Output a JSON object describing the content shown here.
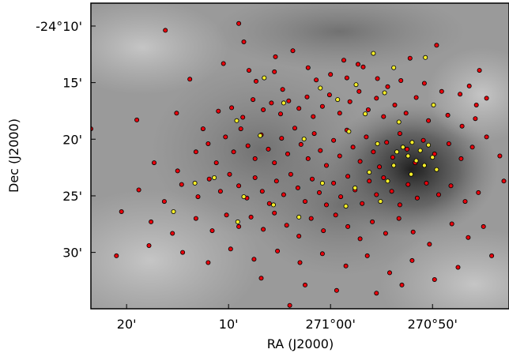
{
  "chart_data": {
    "type": "scatter",
    "title": "",
    "xlabel": "RA (J2000)",
    "ylabel": "Dec (J2000)",
    "x_direction": "decreasing",
    "xlim_arcmin_from_271d00m": [
      23.5,
      -17.5
    ],
    "ylim_arcmin_dec": [
      -24.133,
      -24.583
    ],
    "x_ticks": [
      {
        "value": 20,
        "label": "20'"
      },
      {
        "value": 10,
        "label": "10'"
      },
      {
        "value": 0,
        "label": "271°00'"
      },
      {
        "value": -10,
        "label": "270°50'"
      }
    ],
    "y_ticks": [
      {
        "value": -24.1667,
        "label": "-24°10'"
      },
      {
        "value": -24.25,
        "label": "15'"
      },
      {
        "value": -24.3333,
        "label": "20'"
      },
      {
        "value": -24.4167,
        "label": "25'"
      },
      {
        "value": -24.5,
        "label": "30'"
      }
    ],
    "background": "grayscale nebula image (dark cloud centered near 270°55', -24°22')",
    "series": [
      {
        "marker_color": "#e8000b",
        "description": "red sources (majority)",
        "points": [
          [
            16.2,
            -24.173
          ],
          [
            9.0,
            -24.163
          ],
          [
            8.5,
            -24.19
          ],
          [
            5.4,
            -24.212
          ],
          [
            3.7,
            -24.203
          ],
          [
            -1.3,
            -24.217
          ],
          [
            -2.7,
            -24.223
          ],
          [
            -7.8,
            -24.214
          ],
          [
            -10.4,
            -24.195
          ],
          [
            -14.6,
            -24.232
          ],
          [
            13.8,
            -24.245
          ],
          [
            10.5,
            -24.222
          ],
          [
            8.0,
            -24.232
          ],
          [
            7.3,
            -24.248
          ],
          [
            5.5,
            -24.234
          ],
          [
            4.7,
            -24.26
          ],
          [
            2.2,
            -24.228
          ],
          [
            1.4,
            -24.246
          ],
          [
            0.0,
            -24.238
          ],
          [
            -1.6,
            -24.243
          ],
          [
            -3.2,
            -24.227
          ],
          [
            -4.6,
            -24.244
          ],
          [
            -5.6,
            -24.256
          ],
          [
            -6.9,
            -24.247
          ],
          [
            -9.2,
            -24.251
          ],
          [
            -10.9,
            -24.263
          ],
          [
            -12.7,
            -24.267
          ],
          [
            -13.6,
            -24.255
          ],
          [
            -14.3,
            -24.283
          ],
          [
            -15.3,
            -24.273
          ],
          [
            23.5,
            -24.318
          ],
          [
            19.0,
            -24.305
          ],
          [
            15.1,
            -24.295
          ],
          [
            12.5,
            -24.318
          ],
          [
            11.0,
            -24.292
          ],
          [
            9.7,
            -24.287
          ],
          [
            8.6,
            -24.301
          ],
          [
            7.6,
            -24.275
          ],
          [
            6.6,
            -24.29
          ],
          [
            5.8,
            -24.28
          ],
          [
            4.9,
            -24.296
          ],
          [
            4.1,
            -24.277
          ],
          [
            3.1,
            -24.288
          ],
          [
            2.3,
            -24.271
          ],
          [
            1.7,
            -24.3
          ],
          [
            0.8,
            -24.285
          ],
          [
            0.1,
            -24.268
          ],
          [
            -0.9,
            -24.295
          ],
          [
            -1.9,
            -24.278
          ],
          [
            -2.8,
            -24.263
          ],
          [
            -3.7,
            -24.29
          ],
          [
            -4.5,
            -24.273
          ],
          [
            -5.2,
            -24.3
          ],
          [
            -6.3,
            -24.283
          ],
          [
            -7.4,
            -24.295
          ],
          [
            -8.4,
            -24.272
          ],
          [
            -9.6,
            -24.306
          ],
          [
            -11.5,
            -24.298
          ],
          [
            -12.9,
            -24.314
          ],
          [
            -14.2,
            -24.303
          ],
          [
            17.3,
            -24.368
          ],
          [
            15.0,
            -24.38
          ],
          [
            13.2,
            -24.352
          ],
          [
            12.0,
            -24.34
          ],
          [
            11.2,
            -24.368
          ],
          [
            10.3,
            -24.33
          ],
          [
            9.5,
            -24.352
          ],
          [
            8.8,
            -24.318
          ],
          [
            8.1,
            -24.343
          ],
          [
            7.4,
            -24.362
          ],
          [
            6.8,
            -24.327
          ],
          [
            6.1,
            -24.348
          ],
          [
            5.5,
            -24.368
          ],
          [
            4.8,
            -24.332
          ],
          [
            4.2,
            -24.355
          ],
          [
            3.5,
            -24.317
          ],
          [
            2.9,
            -24.341
          ],
          [
            2.2,
            -24.362
          ],
          [
            1.6,
            -24.325
          ],
          [
            1.0,
            -24.35
          ],
          [
            0.4,
            -24.372
          ],
          [
            -0.3,
            -24.335
          ],
          [
            -0.9,
            -24.358
          ],
          [
            -1.6,
            -24.32
          ],
          [
            -2.2,
            -24.345
          ],
          [
            -2.9,
            -24.366
          ],
          [
            -3.5,
            -24.33
          ],
          [
            -4.2,
            -24.352
          ],
          [
            -4.8,
            -24.374
          ],
          [
            -5.5,
            -24.338
          ],
          [
            -6.1,
            -24.36
          ],
          [
            -6.8,
            -24.325
          ],
          [
            -7.5,
            -24.348
          ],
          [
            -8.3,
            -24.368
          ],
          [
            -9.1,
            -24.335
          ],
          [
            -10.2,
            -24.355
          ],
          [
            -11.6,
            -24.34
          ],
          [
            -12.8,
            -24.362
          ],
          [
            -13.9,
            -24.345
          ],
          [
            -15.3,
            -24.33
          ],
          [
            -16.6,
            -24.358
          ],
          [
            -17.0,
            -24.395
          ],
          [
            18.8,
            -24.408
          ],
          [
            16.3,
            -24.425
          ],
          [
            14.6,
            -24.4
          ],
          [
            13.0,
            -24.418
          ],
          [
            11.9,
            -24.392
          ],
          [
            10.8,
            -24.41
          ],
          [
            9.9,
            -24.385
          ],
          [
            9.0,
            -24.402
          ],
          [
            8.2,
            -24.42
          ],
          [
            7.4,
            -24.39
          ],
          [
            6.7,
            -24.41
          ],
          [
            6.0,
            -24.428
          ],
          [
            5.3,
            -24.395
          ],
          [
            4.6,
            -24.415
          ],
          [
            3.9,
            -24.385
          ],
          [
            3.2,
            -24.405
          ],
          [
            2.5,
            -24.425
          ],
          [
            1.8,
            -24.392
          ],
          [
            1.1,
            -24.412
          ],
          [
            0.4,
            -24.43
          ],
          [
            -0.3,
            -24.398
          ],
          [
            -1.0,
            -24.418
          ],
          [
            -1.7,
            -24.388
          ],
          [
            -2.4,
            -24.408
          ],
          [
            -3.1,
            -24.428
          ],
          [
            -3.8,
            -24.395
          ],
          [
            -4.5,
            -24.415
          ],
          [
            -5.2,
            -24.39
          ],
          [
            -6.0,
            -24.41
          ],
          [
            -6.8,
            -24.43
          ],
          [
            -7.6,
            -24.4
          ],
          [
            -8.5,
            -24.42
          ],
          [
            -9.4,
            -24.398
          ],
          [
            -10.6,
            -24.415
          ],
          [
            -11.8,
            -24.402
          ],
          [
            -13.2,
            -24.425
          ],
          [
            -14.5,
            -24.412
          ],
          [
            20.5,
            -24.44
          ],
          [
            17.6,
            -24.455
          ],
          [
            15.5,
            -24.472
          ],
          [
            13.2,
            -24.45
          ],
          [
            11.6,
            -24.468
          ],
          [
            10.2,
            -24.445
          ],
          [
            9.0,
            -24.462
          ],
          [
            7.8,
            -24.448
          ],
          [
            6.6,
            -24.466
          ],
          [
            5.5,
            -24.442
          ],
          [
            4.3,
            -24.46
          ],
          [
            3.1,
            -24.476
          ],
          [
            1.9,
            -24.45
          ],
          [
            0.7,
            -24.468
          ],
          [
            -0.5,
            -24.445
          ],
          [
            -1.7,
            -24.462
          ],
          [
            -2.9,
            -24.48
          ],
          [
            -4.1,
            -24.455
          ],
          [
            -5.4,
            -24.472
          ],
          [
            -6.7,
            -24.45
          ],
          [
            -8.1,
            -24.47
          ],
          [
            -9.7,
            -24.488
          ],
          [
            -11.9,
            -24.458
          ],
          [
            -13.5,
            -24.478
          ],
          [
            -15.0,
            -24.462
          ],
          [
            21.0,
            -24.505
          ],
          [
            17.8,
            -24.49
          ],
          [
            14.5,
            -24.5
          ],
          [
            12.0,
            -24.515
          ],
          [
            9.8,
            -24.495
          ],
          [
            7.5,
            -24.51
          ],
          [
            5.2,
            -24.498
          ],
          [
            3.0,
            -24.515
          ],
          [
            0.8,
            -24.502
          ],
          [
            -1.5,
            -24.52
          ],
          [
            -3.6,
            -24.505
          ],
          [
            -5.8,
            -24.53
          ],
          [
            -8.0,
            -24.512
          ],
          [
            -10.2,
            -24.54
          ],
          [
            -12.5,
            -24.522
          ],
          [
            -15.8,
            -24.505
          ],
          [
            2.5,
            -24.548
          ],
          [
            -0.6,
            -24.556
          ],
          [
            6.8,
            -24.538
          ],
          [
            -4.5,
            -24.56
          ],
          [
            4.0,
            -24.578
          ],
          [
            -7.0,
            -24.548
          ]
        ]
      },
      {
        "marker_color": "#f5ee2a",
        "description": "yellow sources",
        "points": [
          [
            -4.2,
            -24.207
          ],
          [
            -6.2,
            -24.228
          ],
          [
            -9.3,
            -24.213
          ],
          [
            6.5,
            -24.243
          ],
          [
            1.0,
            -24.258
          ],
          [
            -2.5,
            -24.253
          ],
          [
            -5.3,
            -24.265
          ],
          [
            -10.1,
            -24.283
          ],
          [
            4.6,
            -24.28
          ],
          [
            -0.7,
            -24.275
          ],
          [
            -3.4,
            -24.296
          ],
          [
            -6.7,
            -24.308
          ],
          [
            9.2,
            -24.306
          ],
          [
            6.9,
            -24.328
          ],
          [
            2.6,
            -24.333
          ],
          [
            -1.8,
            -24.322
          ],
          [
            -4.6,
            -24.34
          ],
          [
            -6.5,
            -24.352
          ],
          [
            -7.1,
            -24.345
          ],
          [
            -7.6,
            -24.358
          ],
          [
            -8.0,
            -24.338
          ],
          [
            -8.4,
            -24.365
          ],
          [
            -8.8,
            -24.35
          ],
          [
            -9.2,
            -24.372
          ],
          [
            -9.6,
            -24.342
          ],
          [
            -10.0,
            -24.36
          ],
          [
            -10.4,
            -24.378
          ],
          [
            -7.9,
            -24.385
          ],
          [
            -6.2,
            -24.372
          ],
          [
            -5.6,
            -24.395
          ],
          [
            -3.8,
            -24.382
          ],
          [
            11.4,
            -24.39
          ],
          [
            8.5,
            -24.418
          ],
          [
            13.3,
            -24.398
          ],
          [
            5.6,
            -24.43
          ],
          [
            0.8,
            -24.398
          ],
          [
            -2.4,
            -24.405
          ],
          [
            -4.9,
            -24.425
          ],
          [
            3.1,
            -24.448
          ],
          [
            15.4,
            -24.44
          ],
          [
            9.1,
            -24.455
          ],
          [
            -1.5,
            -24.432
          ]
        ]
      }
    ]
  }
}
